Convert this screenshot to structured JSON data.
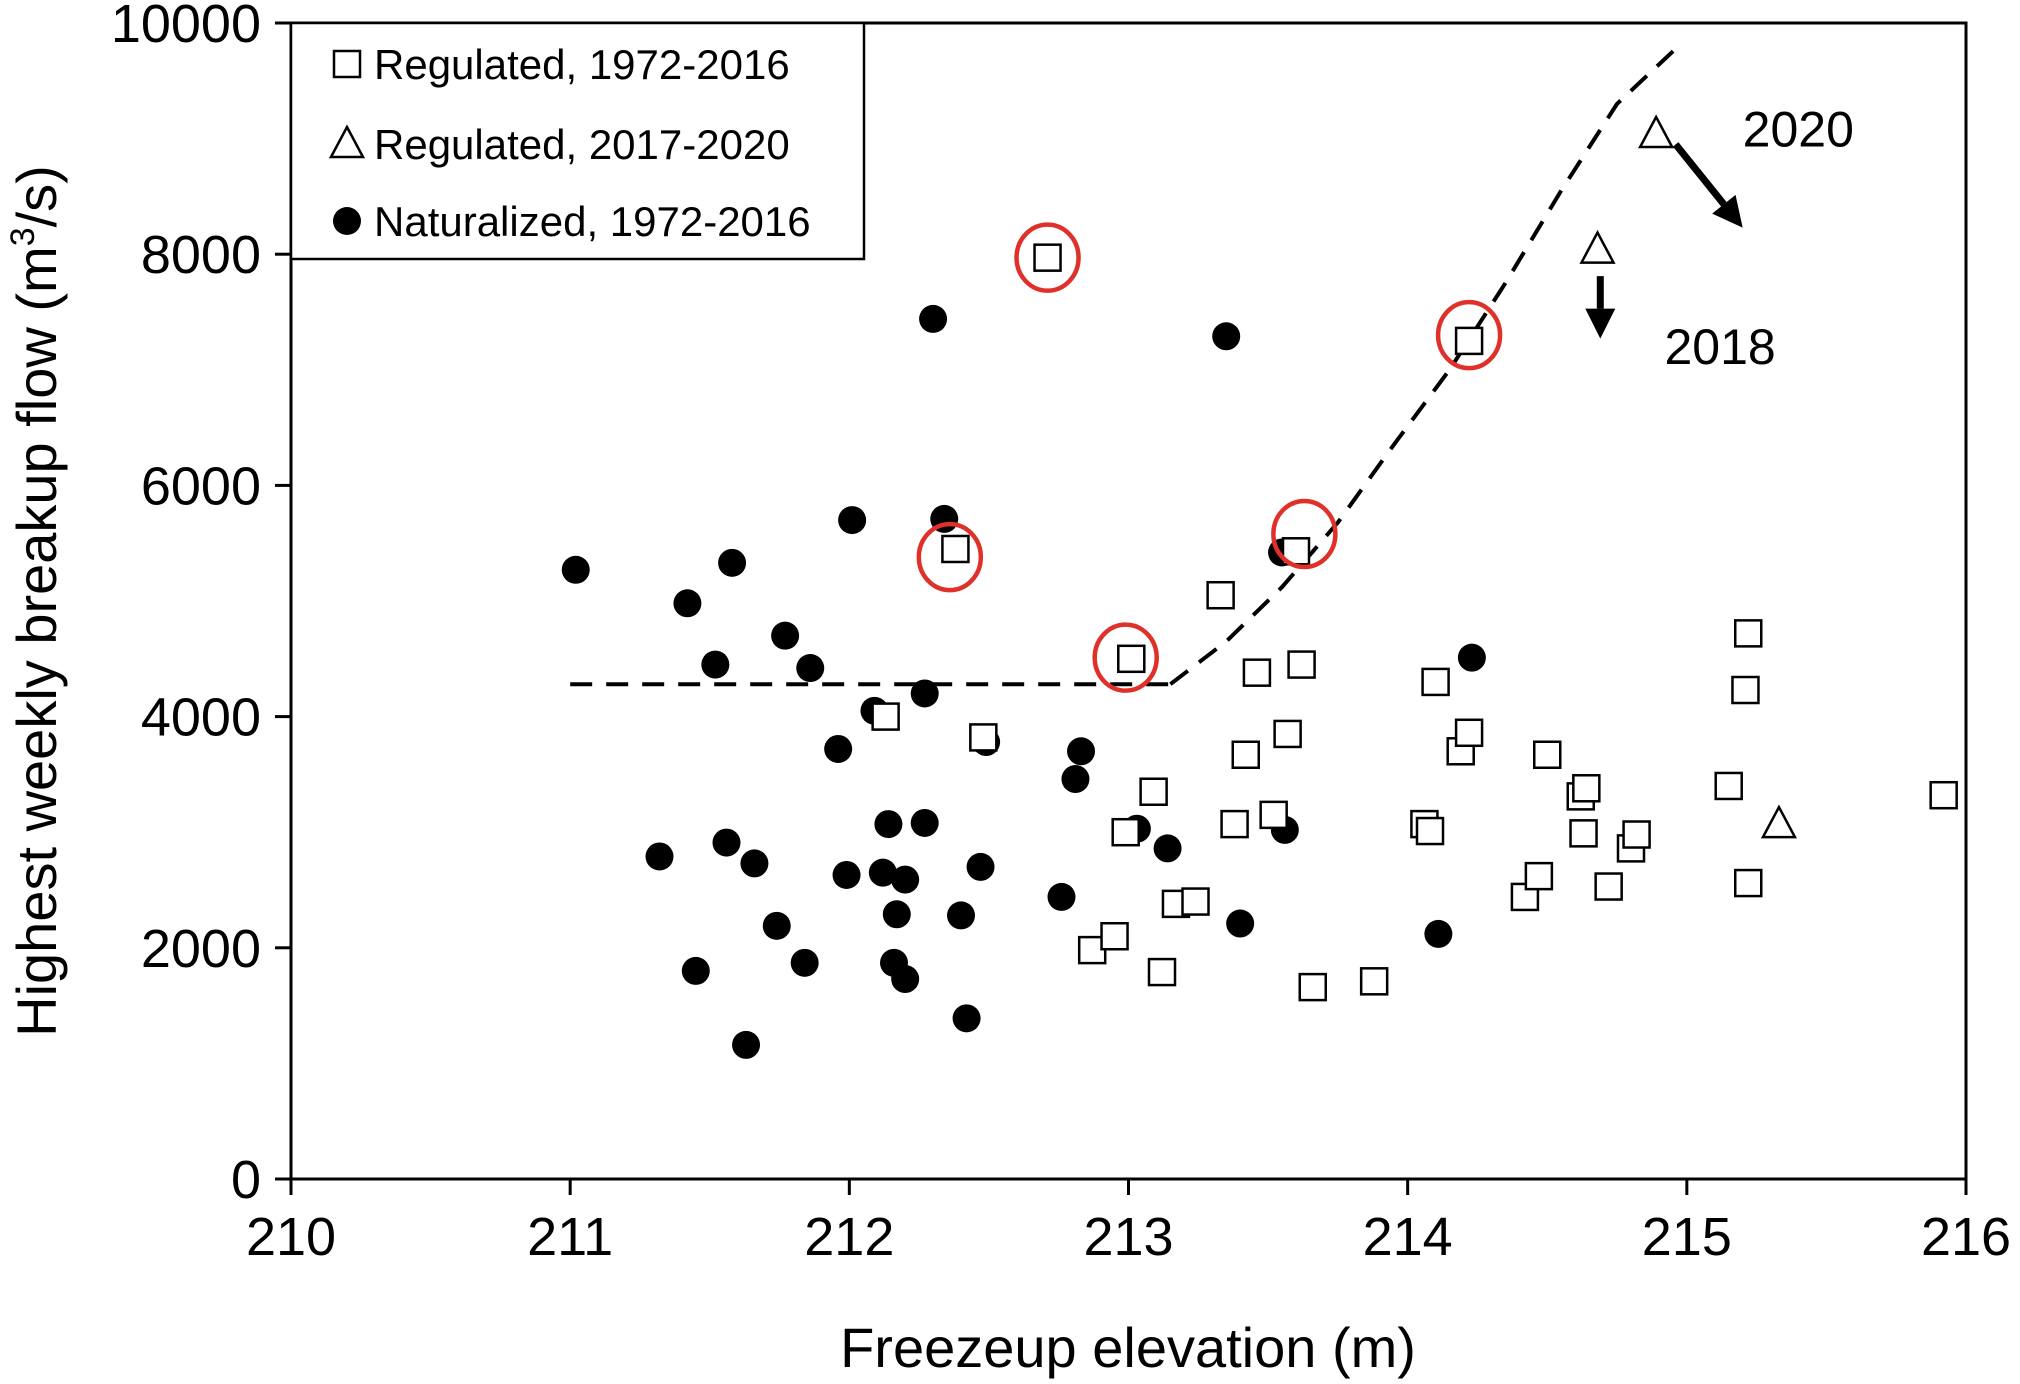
{
  "chart_data": {
    "type": "scatter",
    "xlabel": "Freezeup elevation (m)",
    "ylabel_main": "Highest weekly breakup flow (m",
    "ylabel_sup": "3",
    "ylabel_end": "/s)",
    "xlim": [
      210,
      216
    ],
    "ylim": [
      0,
      10000
    ],
    "x_ticks": [
      210,
      211,
      212,
      213,
      214,
      215,
      216
    ],
    "y_ticks": [
      0,
      2000,
      4000,
      6000,
      8000,
      10000
    ],
    "x_tick_labels": [
      "210",
      "211",
      "212",
      "213",
      "214",
      "215",
      "216"
    ],
    "y_tick_labels": [
      "0",
      "2000",
      "4000",
      "6000",
      "8000",
      "10000"
    ],
    "grid": false,
    "legend_position": "top-left",
    "series": [
      {
        "name": "Regulated, 1972-2016",
        "marker": "square",
        "points": [
          [
            212.13,
            4000
          ],
          [
            212.48,
            3820
          ],
          [
            212.38,
            5450
          ],
          [
            212.71,
            7970
          ],
          [
            212.87,
            1980
          ],
          [
            212.95,
            2100
          ],
          [
            212.99,
            3000
          ],
          [
            213.01,
            4500
          ],
          [
            213.09,
            3350
          ],
          [
            213.12,
            1790
          ],
          [
            213.17,
            2380
          ],
          [
            213.24,
            2400
          ],
          [
            213.33,
            5050
          ],
          [
            213.38,
            3070
          ],
          [
            213.42,
            3670
          ],
          [
            213.46,
            4380
          ],
          [
            213.52,
            3150
          ],
          [
            213.57,
            3850
          ],
          [
            213.6,
            5430
          ],
          [
            213.62,
            4450
          ],
          [
            213.66,
            1660
          ],
          [
            213.88,
            1710
          ],
          [
            214.06,
            3070
          ],
          [
            214.08,
            3010
          ],
          [
            214.1,
            4300
          ],
          [
            214.19,
            3700
          ],
          [
            214.22,
            3860
          ],
          [
            214.22,
            7250
          ],
          [
            214.42,
            2440
          ],
          [
            214.47,
            2620
          ],
          [
            214.5,
            3670
          ],
          [
            214.62,
            3310
          ],
          [
            214.63,
            2990
          ],
          [
            214.64,
            3380
          ],
          [
            214.72,
            2530
          ],
          [
            214.8,
            2860
          ],
          [
            214.82,
            2980
          ],
          [
            215.15,
            3400
          ],
          [
            215.21,
            4230
          ],
          [
            215.22,
            4720
          ],
          [
            215.22,
            2560
          ],
          [
            215.92,
            3320
          ]
        ]
      },
      {
        "name": "Regulated, 2017-2020",
        "marker": "triangle",
        "points": [
          [
            214.68,
            8040
          ],
          [
            214.89,
            9040
          ],
          [
            215.33,
            3070
          ]
        ]
      },
      {
        "name": "Naturalized, 1972-2016",
        "marker": "circle",
        "points": [
          [
            211.02,
            5270
          ],
          [
            211.32,
            2790
          ],
          [
            211.42,
            4980
          ],
          [
            211.45,
            1800
          ],
          [
            211.52,
            4450
          ],
          [
            211.56,
            2910
          ],
          [
            211.58,
            5330
          ],
          [
            211.63,
            1160
          ],
          [
            211.66,
            2730
          ],
          [
            211.74,
            2190
          ],
          [
            211.77,
            4700
          ],
          [
            211.84,
            1870
          ],
          [
            211.86,
            4420
          ],
          [
            211.96,
            3720
          ],
          [
            211.99,
            2630
          ],
          [
            212.01,
            5700
          ],
          [
            212.09,
            4050
          ],
          [
            212.12,
            2650
          ],
          [
            212.14,
            3070
          ],
          [
            212.16,
            1870
          ],
          [
            212.17,
            2290
          ],
          [
            212.2,
            1730
          ],
          [
            212.2,
            2590
          ],
          [
            212.27,
            3080
          ],
          [
            212.27,
            4200
          ],
          [
            212.3,
            7440
          ],
          [
            212.34,
            5710
          ],
          [
            212.4,
            2280
          ],
          [
            212.42,
            1390
          ],
          [
            212.47,
            2700
          ],
          [
            212.49,
            3780
          ],
          [
            212.76,
            2440
          ],
          [
            212.81,
            3460
          ],
          [
            212.83,
            3700
          ],
          [
            213.03,
            3030
          ],
          [
            213.14,
            2860
          ],
          [
            213.35,
            7290
          ],
          [
            213.4,
            2210
          ],
          [
            213.55,
            5420
          ],
          [
            213.56,
            3020
          ],
          [
            214.11,
            2120
          ],
          [
            214.23,
            4510
          ]
        ]
      }
    ],
    "highlighted_points": [
      [
        212.71,
        7970
      ],
      [
        212.36,
        5380
      ],
      [
        212.99,
        4510
      ],
      [
        213.63,
        5580
      ],
      [
        214.22,
        7300
      ]
    ],
    "threshold_curve": {
      "flat_value": 4280,
      "flat_x": [
        211,
        213.15
      ],
      "curve": [
        [
          213.15,
          4280
        ],
        [
          213.35,
          4650
        ],
        [
          213.55,
          5120
        ],
        [
          213.75,
          5680
        ],
        [
          213.95,
          6350
        ],
        [
          214.15,
          7000
        ],
        [
          214.35,
          7750
        ],
        [
          214.55,
          8550
        ],
        [
          214.75,
          9300
        ],
        [
          214.97,
          9800
        ]
      ]
    },
    "annotations": [
      {
        "text": "2020",
        "text_at": [
          215.2,
          8930
        ],
        "arrow_from": [
          214.96,
          8950
        ],
        "arrow_to": [
          215.2,
          8230
        ]
      },
      {
        "text": "2018",
        "text_at": [
          214.92,
          7050
        ],
        "arrow_from": [
          214.69,
          7810
        ],
        "arrow_to": [
          214.69,
          7270
        ]
      }
    ]
  },
  "colors": {
    "axis": "#000000",
    "marker": "#000000",
    "highlight": "#e0302a"
  }
}
